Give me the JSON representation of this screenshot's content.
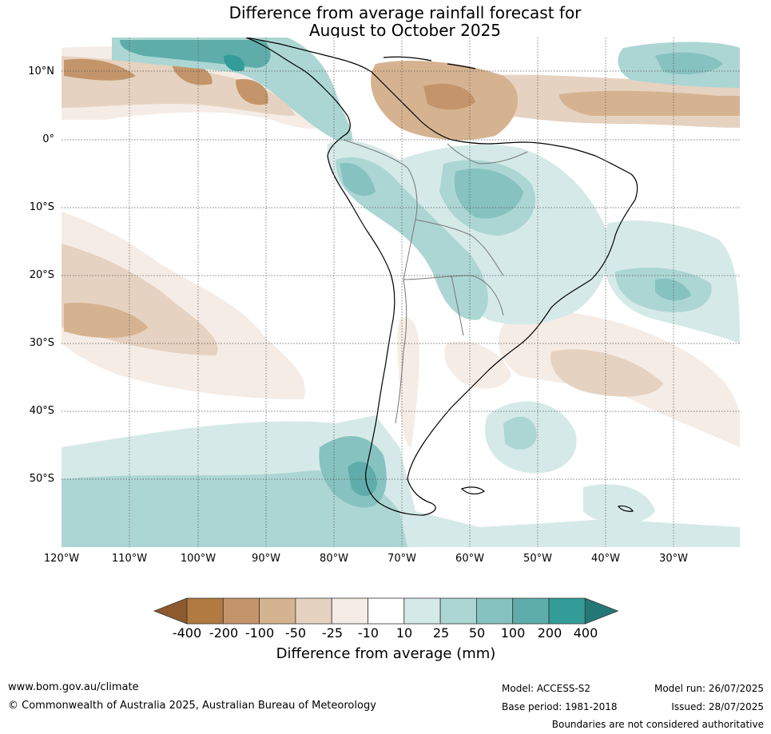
{
  "title_line1": "Difference from average rainfall forecast for",
  "title_line2": "August to October 2025",
  "lat_labels": [
    "10°N",
    "0°",
    "10°S",
    "20°S",
    "30°S",
    "40°S",
    "50°S"
  ],
  "lon_labels": [
    "120°W",
    "110°W",
    "100°W",
    "90°W",
    "80°W",
    "70°W",
    "60°W",
    "50°W",
    "40°W",
    "30°W"
  ],
  "colorbar": {
    "title": "Difference from average (mm)",
    "tick_labels": [
      "-400",
      "-200",
      "-100",
      "-50",
      "-25",
      "-10",
      "10",
      "25",
      "50",
      "100",
      "200",
      "400"
    ],
    "colors": [
      "#8c5a2e",
      "#b07a40",
      "#c4956a",
      "#d6b390",
      "#e6d2c0",
      "#f5ece6",
      "#ffffff",
      "#d5eae8",
      "#acd6d4",
      "#86c2c0",
      "#5eadaa",
      "#339b98",
      "#237876"
    ]
  },
  "footer": {
    "website": "www.bom.gov.au/climate",
    "copyright": "© Commonwealth of Australia 2025, Australian Bureau of Meteorology",
    "model": "Model: ACCESS-S2",
    "base_period": "Base period: 1981-2018",
    "model_run": "Model run: 26/07/2025",
    "issued": "Issued: 28/07/2025",
    "disclaimer": "Boundaries are not considered authoritative"
  }
}
